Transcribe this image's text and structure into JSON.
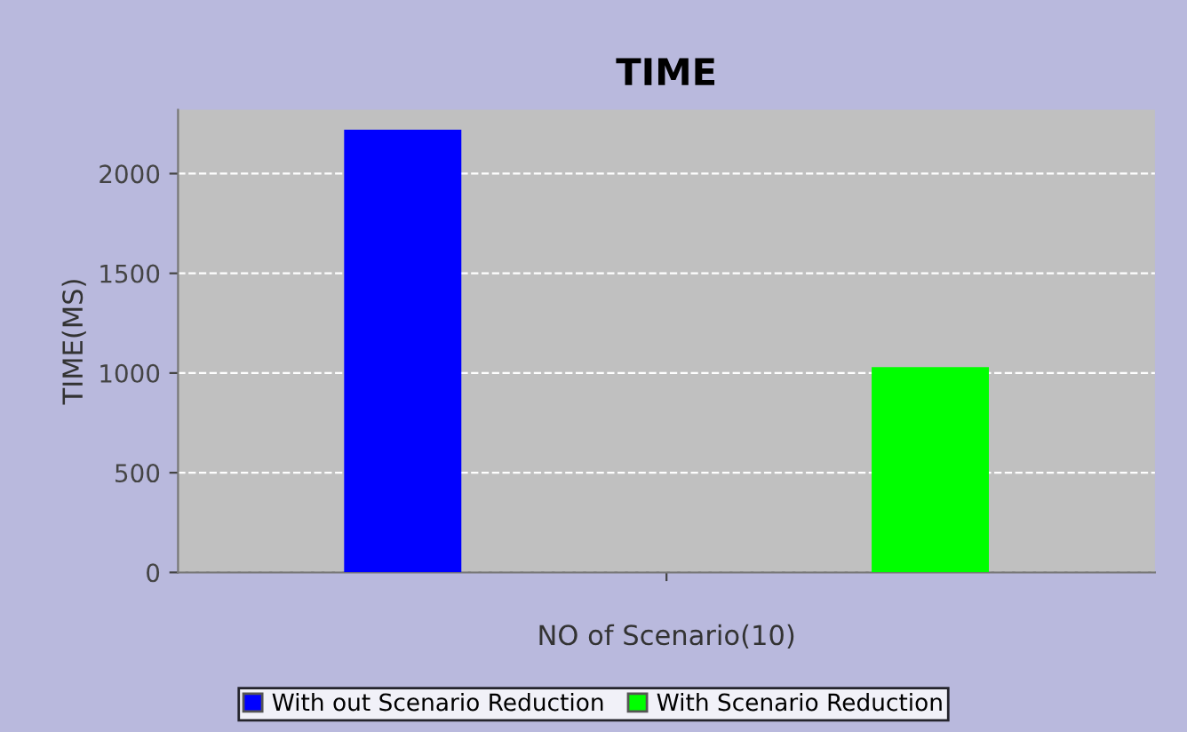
{
  "chart_data": {
    "type": "bar",
    "title": "TIME",
    "xlabel": "NO of Scenario(10)",
    "ylabel": "TIME(MS)",
    "categories": [
      null
    ],
    "series": [
      {
        "name": "With out Scenario Reduction",
        "color": "#0000ff",
        "values": [
          2220
        ]
      },
      {
        "name": "With Scenario Reduction",
        "color": "#00ff00",
        "values": [
          1030
        ]
      }
    ],
    "ylim": [
      0,
      2320
    ],
    "yticks": [
      0,
      500,
      1000,
      1500,
      2000
    ],
    "grid": "y",
    "legend": "bottom"
  }
}
